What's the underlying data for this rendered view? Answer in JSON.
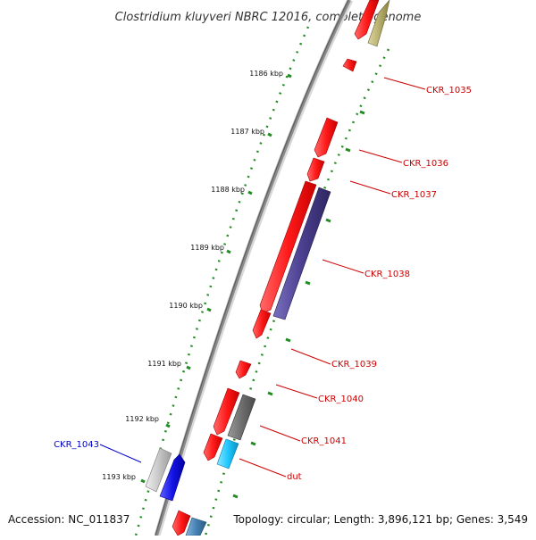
{
  "title": "Clostridium kluyveri NBRC 12016, complete genome",
  "footer": {
    "accession": "Accession: NC_011837",
    "topology": "Topology: circular; Length: 3,896,121 bp; Genes: 3,549"
  },
  "ruler_labels": [
    "1186 kbp",
    "1187 kbp",
    "1188 kbp",
    "1189 kbp",
    "1190 kbp",
    "1191 kbp",
    "1192 kbp",
    "1193 kbp"
  ],
  "gene_labels": [
    {
      "id": "CKR_1035",
      "text": "CKR_1035",
      "color": "#cc0000"
    },
    {
      "id": "CKR_1036",
      "text": "CKR_1036",
      "color": "#cc0000"
    },
    {
      "id": "CKR_1037",
      "text": "CKR_1037",
      "color": "#cc0000"
    },
    {
      "id": "CKR_1038",
      "text": "CKR_1038",
      "color": "#cc0000"
    },
    {
      "id": "CKR_1039",
      "text": "CKR_1039",
      "color": "#cc0000"
    },
    {
      "id": "CKR_1040",
      "text": "CKR_1040",
      "color": "#cc0000"
    },
    {
      "id": "CKR_1041",
      "text": "CKR_1041",
      "color": "#cc0000"
    },
    {
      "id": "dut",
      "text": "dut",
      "color": "#cc0000"
    },
    {
      "id": "CKR_1043",
      "text": "CKR_1043",
      "color": "#0000cc"
    }
  ],
  "colors": {
    "backbone": "#888888",
    "ruler": "#228b22",
    "red_gene": "#ff1a1a",
    "purple_gene": "#4b3f8f",
    "grey_gene": "#6e6e6e",
    "cyan_gene": "#1ec8ff",
    "blue_gene": "#1414e6",
    "lightgrey_gene": "#c8c8c8",
    "olive_gene": "#b8b070",
    "steelblue_gene": "#4682b4"
  }
}
